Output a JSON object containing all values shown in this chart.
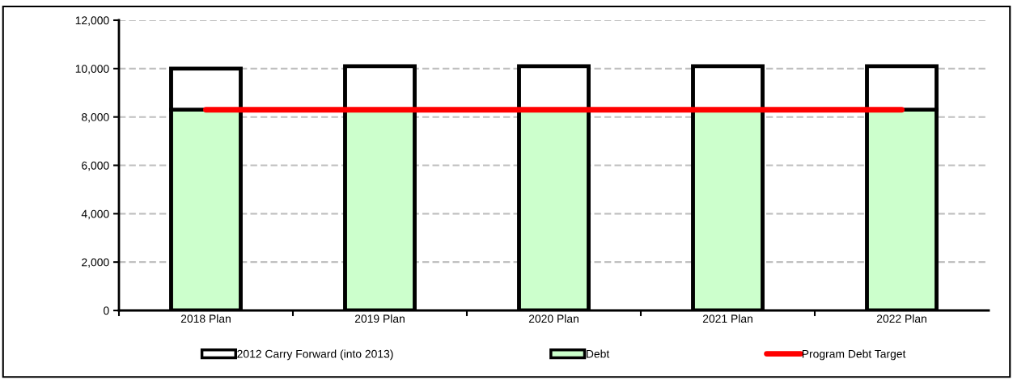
{
  "chart_data": {
    "type": "bar",
    "stacked": true,
    "categories": [
      "2018 Plan",
      "2019 Plan",
      "2020 Plan",
      "2021 Plan",
      "2022 Plan"
    ],
    "series": [
      {
        "name": "Debt",
        "color": "#ccffcc",
        "values": [
          8300,
          8300,
          8300,
          8300,
          8300
        ]
      },
      {
        "name": "2012 Carry Forward (into 2013)",
        "color": "#ffffff",
        "values": [
          1700,
          1800,
          1800,
          1800,
          1800
        ]
      },
      {
        "name": "Program Debt Target",
        "type": "line",
        "color": "#ff0000",
        "values": [
          8300,
          8300,
          8300,
          8300,
          8300
        ]
      }
    ],
    "ylim": [
      0,
      12000
    ],
    "yticks": [
      {
        "value": 0,
        "label": "0"
      },
      {
        "value": 2000,
        "label": "2,000"
      },
      {
        "value": 4000,
        "label": "4,000"
      },
      {
        "value": 6000,
        "label": "6,000"
      },
      {
        "value": 8000,
        "label": "8,000"
      },
      {
        "value": 10000,
        "label": "10,000"
      },
      {
        "value": 12000,
        "label": "12,000"
      }
    ],
    "grid": "y",
    "legend": "bottom"
  }
}
